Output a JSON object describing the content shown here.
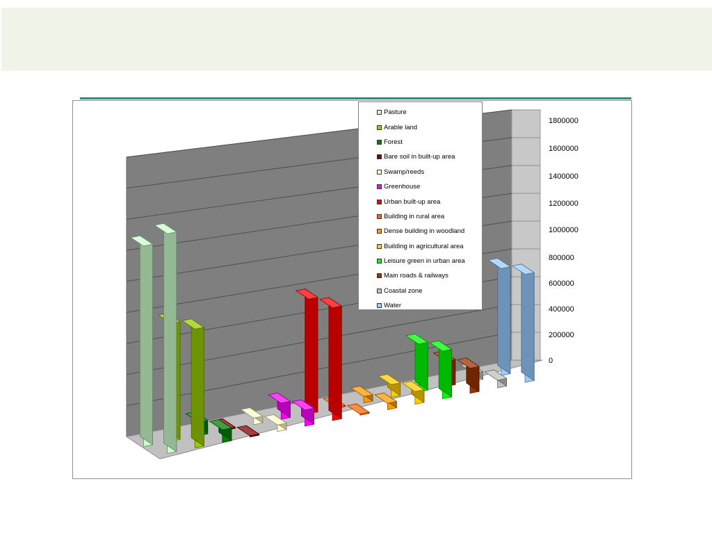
{
  "chart_data": {
    "type": "bar",
    "bar_style": "3d-column",
    "grid": true,
    "legend_position": "top-right",
    "ylim": [
      0,
      1800000
    ],
    "ytick_labels": [
      "0",
      "200000",
      "400000",
      "600000",
      "800000",
      "1000000",
      "1200000",
      "1400000",
      "1600000",
      "1800000"
    ],
    "series": [
      {
        "name": "Pasture",
        "color": "#ccffcc",
        "values": [
          1320000,
          1450000
        ]
      },
      {
        "name": "Arable land",
        "color": "#99cc00",
        "values": [
          780000,
          790000
        ]
      },
      {
        "name": "Forest",
        "color": "#008000",
        "values": [
          90000,
          85000
        ]
      },
      {
        "name": "Bare soil in built-up area",
        "color": "#800000",
        "values": [
          8000,
          8000
        ]
      },
      {
        "name": "Swamp/reeds",
        "color": "#ffffcc",
        "values": [
          45000,
          45000
        ]
      },
      {
        "name": "Greenhouse",
        "color": "#ff00ff",
        "values": [
          110000,
          110000
        ]
      },
      {
        "name": "Urban built-up area",
        "color": "#ff0000",
        "values": [
          790000,
          780000
        ]
      },
      {
        "name": "Building in rural area",
        "color": "#ff6600",
        "values": [
          8000,
          8000
        ]
      },
      {
        "name": "Dense building in woodland",
        "color": "#ff9900",
        "values": [
          45000,
          45000
        ]
      },
      {
        "name": "Building in agricultural area",
        "color": "#ffcc00",
        "values": [
          90000,
          90000
        ]
      },
      {
        "name": "Leisure green in urban area",
        "color": "#00ff00",
        "values": [
          340000,
          340000
        ]
      },
      {
        "name": "Main roads & railways",
        "color": "#993300",
        "values": [
          180000,
          180000
        ]
      },
      {
        "name": "Coastal zone",
        "color": "#c0c0c0",
        "values": [
          55000,
          55000
        ]
      },
      {
        "name": "Water",
        "color": "#99ccff",
        "values": [
          780000,
          790000
        ]
      }
    ]
  }
}
